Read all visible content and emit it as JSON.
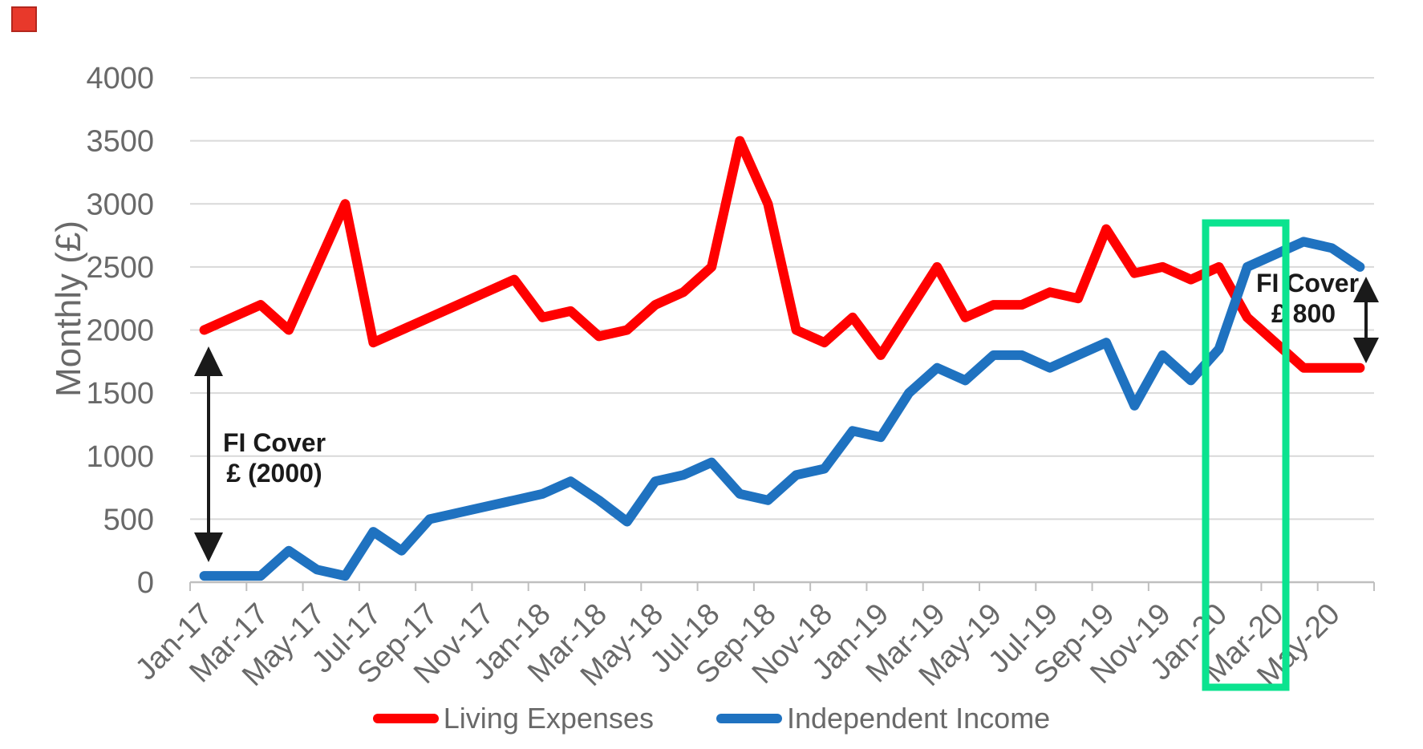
{
  "page": {
    "background": "#ffffff"
  },
  "decoration": {
    "corner_square_color": "#e8392b"
  },
  "axis": {
    "label_color": "#696969",
    "gridline_color": "#d9d9d9",
    "axisline_color": "#bfbfbf"
  },
  "chart_data": {
    "type": "line",
    "title": "",
    "xlabel": "",
    "ylabel": "Monthly (£)",
    "ylim": [
      0,
      4000
    ],
    "y_tick_step": 500,
    "y_ticks": [
      0,
      500,
      1000,
      1500,
      2000,
      2500,
      3000,
      3500,
      4000
    ],
    "grid": true,
    "legend_position": "bottom-center",
    "categories": [
      "Jan-17",
      "Feb-17",
      "Mar-17",
      "Apr-17",
      "May-17",
      "Jun-17",
      "Jul-17",
      "Aug-17",
      "Sep-17",
      "Oct-17",
      "Nov-17",
      "Dec-17",
      "Jan-18",
      "Feb-18",
      "Mar-18",
      "Apr-18",
      "May-18",
      "Jun-18",
      "Jul-18",
      "Aug-18",
      "Sep-18",
      "Oct-18",
      "Nov-18",
      "Dec-18",
      "Jan-19",
      "Feb-19",
      "Mar-19",
      "Apr-19",
      "May-19",
      "Jun-19",
      "Jul-19",
      "Aug-19",
      "Sep-19",
      "Oct-19",
      "Nov-19",
      "Dec-19",
      "Jan-20",
      "Feb-20",
      "Mar-20",
      "Apr-20",
      "May-20",
      "Jun-20"
    ],
    "x_tick_labels": [
      "Jan-17",
      "Mar-17",
      "May-17",
      "Jul-17",
      "Sep-17",
      "Nov-17",
      "Jan-18",
      "Mar-18",
      "May-18",
      "Jul-18",
      "Sep-18",
      "Nov-18",
      "Jan-19",
      "Mar-19",
      "May-19",
      "Jul-19",
      "Sep-19",
      "Nov-19",
      "Jan-20",
      "Mar-20",
      "May-20"
    ],
    "series": [
      {
        "name": "Living Expenses",
        "color": "#ff0000",
        "values": [
          2000,
          2100,
          2200,
          2000,
          2500,
          3000,
          1900,
          2000,
          2100,
          2200,
          2300,
          2400,
          2100,
          2150,
          1950,
          2000,
          2200,
          2300,
          2500,
          3500,
          3000,
          2000,
          1900,
          2100,
          1800,
          2150,
          2500,
          2100,
          2200,
          2200,
          2300,
          2250,
          2800,
          2450,
          2500,
          2400,
          2500,
          2100,
          1900,
          1700,
          1700,
          1700
        ]
      },
      {
        "name": "Independent Income",
        "color": "#1f72c0",
        "values": [
          50,
          50,
          50,
          250,
          100,
          50,
          400,
          250,
          500,
          550,
          600,
          650,
          700,
          800,
          650,
          480,
          800,
          850,
          950,
          700,
          650,
          850,
          900,
          1200,
          1150,
          1500,
          1700,
          1600,
          1800,
          1800,
          1700,
          1800,
          1900,
          1400,
          1800,
          1600,
          1850,
          2500,
          2600,
          2700,
          2650,
          2500
        ]
      }
    ]
  },
  "annotations": {
    "left": {
      "line1": "FI Cover",
      "line2": "£ (2000)",
      "line2_color": "#ff0000",
      "arrow": "vertical-double"
    },
    "right": {
      "line1": "FI Cover",
      "line2": "£ 800",
      "line2_color": "#1fa24f",
      "arrow": "vertical-double"
    },
    "highlight_box": {
      "type": "rectangle-outline",
      "color": "#0be38f",
      "months": [
        "Feb-20",
        "Mar-20"
      ]
    }
  }
}
